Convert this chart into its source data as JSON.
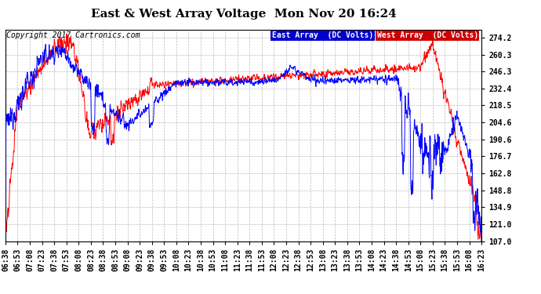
{
  "title": "East & West Array Voltage  Mon Nov 20 16:24",
  "copyright": "Copyright 2017 Cartronics.com",
  "legend_east": "East Array  (DC Volts)",
  "legend_west": "West Array  (DC Volts)",
  "east_color": "#0000ff",
  "west_color": "#ff0000",
  "legend_east_bg": "#0000cc",
  "legend_west_bg": "#cc0000",
  "bg_color": "#ffffff",
  "plot_bg_color": "#ffffff",
  "grid_color": "#bbbbbb",
  "ylim": [
    107.0,
    281.0
  ],
  "yticks": [
    107.0,
    121.0,
    134.9,
    148.8,
    162.8,
    176.7,
    190.6,
    204.6,
    218.5,
    232.4,
    246.3,
    260.3,
    274.2
  ],
  "title_fontsize": 11,
  "copyright_fontsize": 7,
  "tick_fontsize": 7,
  "figwidth": 6.9,
  "figheight": 3.75,
  "dpi": 100
}
